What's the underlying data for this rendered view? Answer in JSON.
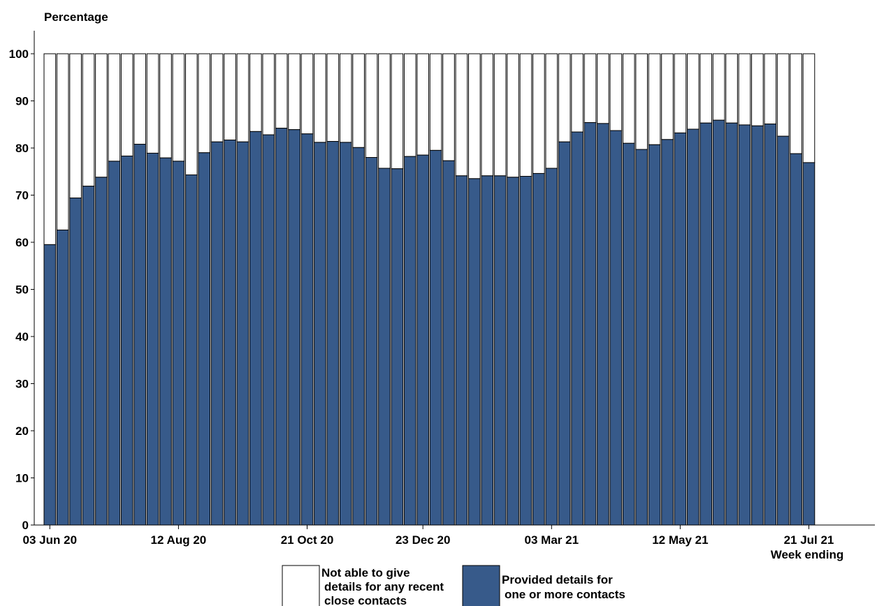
{
  "chart_data": {
    "type": "bar",
    "stacked": true,
    "ylabel": "Percentage",
    "xlabel": "Week ending",
    "ylim": [
      0,
      100
    ],
    "yticks": [
      0,
      10,
      20,
      30,
      40,
      50,
      60,
      70,
      80,
      90,
      100
    ],
    "x_tick_labels": [
      {
        "index": 0,
        "label": "03 Jun 20"
      },
      {
        "index": 10,
        "label": "12 Aug 20"
      },
      {
        "index": 20,
        "label": "21 Oct 20"
      },
      {
        "index": 29,
        "label": "23 Dec 20"
      },
      {
        "index": 39,
        "label": "03 Mar 21"
      },
      {
        "index": 49,
        "label": "12 May 21"
      },
      {
        "index": 59,
        "label": "21 Jul 21"
      }
    ],
    "colors": {
      "provided": "#375a8a",
      "not_able": "#ffffff",
      "outline": "#000000"
    },
    "series": [
      {
        "name": "Provided details for one or more contacts",
        "legend_lines": [
          "Provided details for",
          "one or more contacts"
        ],
        "color": "#375a8a",
        "values": [
          59.5,
          62.6,
          69.4,
          71.9,
          73.8,
          77.2,
          78.3,
          80.8,
          78.9,
          77.9,
          77.2,
          74.3,
          79.0,
          81.3,
          81.7,
          81.3,
          83.5,
          82.8,
          84.2,
          83.9,
          83.0,
          81.2,
          81.4,
          81.2,
          80.1,
          78.0,
          75.7,
          75.6,
          78.2,
          78.5,
          79.5,
          77.3,
          74.1,
          73.5,
          74.1,
          74.1,
          73.8,
          74.0,
          74.6,
          75.7,
          81.3,
          83.4,
          85.4,
          85.2,
          83.7,
          81.0,
          79.7,
          80.7,
          81.8,
          83.2,
          84.0,
          85.3,
          85.9,
          85.3,
          84.9,
          84.7,
          85.1,
          82.5,
          78.8,
          76.9
        ]
      },
      {
        "name": "Not able to give details for any recent close contacts",
        "legend_lines": [
          "Not able to give",
          "details for any recent",
          "close contacts"
        ],
        "color": "#ffffff",
        "values": [
          40.5,
          37.4,
          30.6,
          28.1,
          26.2,
          22.8,
          21.7,
          19.2,
          21.1,
          22.1,
          22.8,
          25.7,
          21.0,
          18.7,
          18.3,
          18.7,
          16.5,
          17.2,
          15.8,
          16.1,
          17.0,
          18.8,
          18.6,
          18.8,
          19.9,
          22.0,
          24.3,
          24.4,
          21.8,
          21.5,
          20.5,
          22.7,
          25.9,
          26.5,
          25.9,
          25.9,
          26.2,
          26.0,
          25.4,
          24.3,
          18.7,
          16.6,
          14.6,
          14.8,
          16.3,
          19.0,
          20.3,
          19.3,
          18.2,
          16.8,
          16.0,
          14.7,
          14.1,
          14.7,
          15.1,
          15.3,
          14.9,
          17.5,
          21.2,
          23.1
        ]
      }
    ]
  }
}
